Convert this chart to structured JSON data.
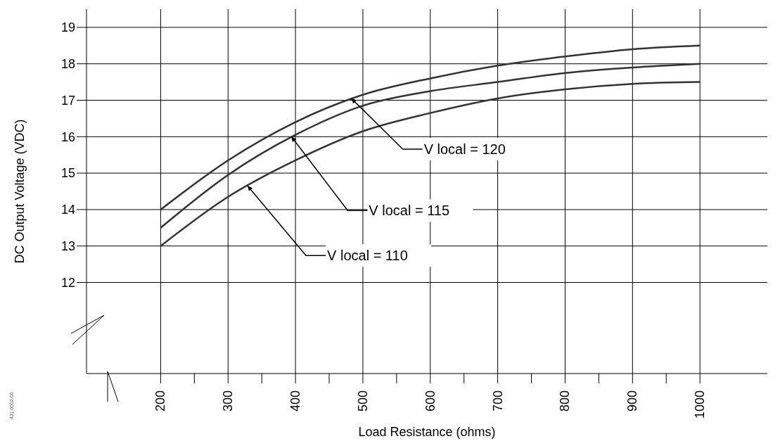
{
  "chart_data": {
    "type": "line",
    "xlabel": "Load Resistance (ohms)",
    "ylabel": "DC Output Voltage (VDC)",
    "x": [
      200,
      300,
      400,
      500,
      600,
      700,
      800,
      900,
      1000
    ],
    "series": [
      {
        "color": "#333333",
        "values": [
          14.0,
          15.35,
          16.4,
          17.15,
          17.6,
          17.95,
          18.2,
          18.4,
          18.5
        ]
      },
      {
        "color": "#333333",
        "values": [
          13.5,
          14.95,
          16.05,
          16.85,
          17.25,
          17.5,
          17.75,
          17.9,
          18.0
        ]
      },
      {
        "color": "#333333",
        "values": [
          13.0,
          14.35,
          15.35,
          16.15,
          16.65,
          17.05,
          17.3,
          17.45,
          17.5
        ]
      }
    ],
    "xlim": [
      90,
      1100
    ],
    "ylim": [
      9.5,
      19.5
    ],
    "xticks": [
      200,
      {
        "value": 250,
        "label": null
      },
      300,
      {
        "value": 350,
        "label": null
      },
      400,
      {
        "value": 450,
        "label": null
      },
      500,
      {
        "value": 550,
        "label": null
      },
      600,
      {
        "value": 650,
        "label": null
      },
      700,
      {
        "value": 750,
        "label": null
      },
      800,
      {
        "value": 850,
        "label": null
      },
      900,
      {
        "value": 950,
        "label": null
      },
      1000
    ],
    "yticks": [
      12,
      13,
      14,
      15,
      16,
      17,
      18,
      19
    ],
    "grid": true,
    "marker": "none",
    "line_style": "solid",
    "annotations": [
      {
        "text": "V local = 120",
        "x": 483,
        "y": 17.05
      },
      {
        "text": "V local = 115",
        "x": 394,
        "y": 16.0
      },
      {
        "text": "V local = 110",
        "x": 329,
        "y": 14.65
      },
      "4J1.0002.00"
    ]
  }
}
